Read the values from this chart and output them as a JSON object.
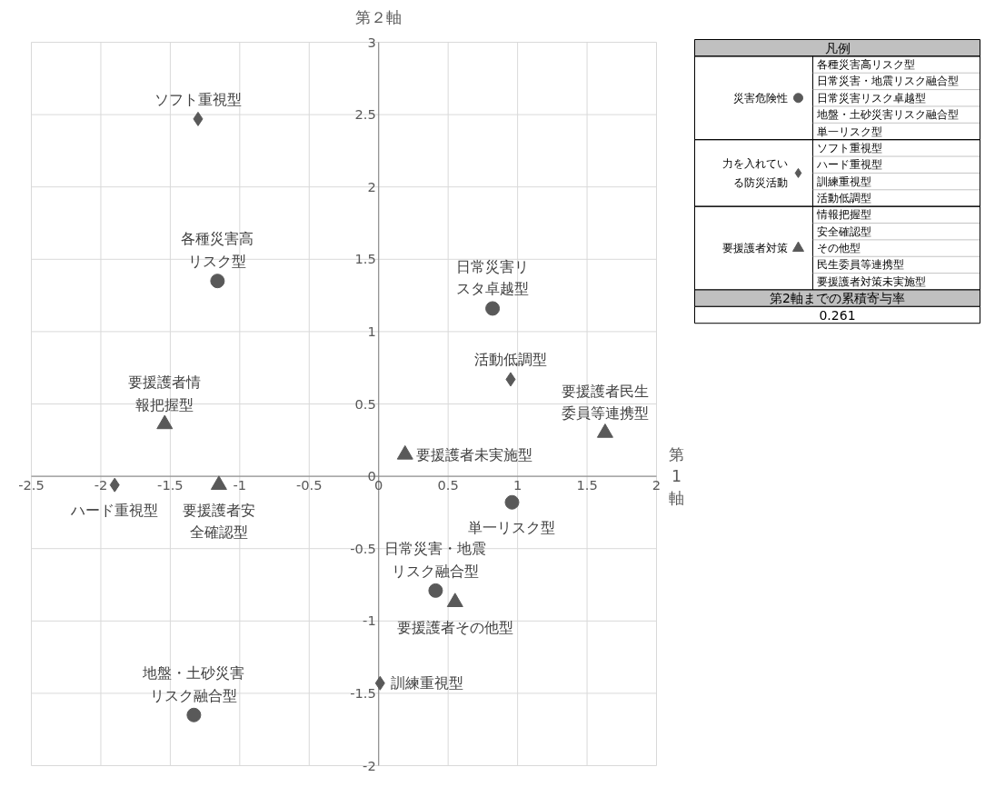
{
  "chart_data": {
    "type": "scatter",
    "xlabel": "第1軸",
    "ylabel": "第２軸",
    "legend_title": "凡例",
    "legend": "right",
    "grid": true,
    "xlim": [
      -2.5,
      2
    ],
    "xticks": [
      -2.5,
      -2,
      -1.5,
      -1,
      -0.5,
      0,
      0.5,
      1,
      1.5,
      2
    ],
    "ylim": [
      -2,
      3
    ],
    "yticks": [
      -2,
      -1.5,
      -1,
      -0.5,
      0,
      0.5,
      1,
      1.5,
      2,
      2.5,
      3
    ],
    "series": [
      {
        "name": "災害危険性",
        "marker": "circle",
        "color": "#595959",
        "x": [
          -1.16,
          0.41,
          0.82,
          -1.33,
          0.96
        ],
        "values": [
          1.35,
          -0.79,
          1.16,
          -1.65,
          -0.18
        ]
      },
      {
        "name": "力を入れている防災活動",
        "marker": "diamond",
        "color": "#595959",
        "x": [
          -1.3,
          -1.9,
          0.01,
          0.95
        ],
        "values": [
          2.47,
          -0.06,
          -1.43,
          0.67
        ]
      },
      {
        "name": "要援護者対策",
        "marker": "triangle",
        "color": "#595959",
        "x": [
          -1.54,
          -1.15,
          0.55,
          1.63,
          0.19
        ],
        "values": [
          0.36,
          -0.06,
          -0.87,
          0.3,
          0.15
        ]
      }
    ],
    "annotations": [
      {
        "text": "各種災害高リスク型",
        "x": -1.16,
        "y": 1.35
      },
      {
        "text": "日常災害・地震リスク融合型",
        "x": 0.41,
        "y": -0.79
      },
      {
        "text": "日常災害リスタ卓越型",
        "x": 0.82,
        "y": 1.16
      },
      {
        "text": "地盤・土砂災害リスク融合型",
        "x": -1.33,
        "y": -1.65
      },
      {
        "text": "単一リスク型",
        "x": 0.96,
        "y": -0.18
      },
      {
        "text": "ソフト重視型",
        "x": -1.3,
        "y": 2.47
      },
      {
        "text": "ハード重視型",
        "x": -1.9,
        "y": -0.06
      },
      {
        "text": "訓練重視型",
        "x": 0.01,
        "y": -1.43
      },
      {
        "text": "活動低調型",
        "x": 0.95,
        "y": 0.67
      },
      {
        "text": "要援護者情報把握型",
        "x": -1.54,
        "y": 0.36
      },
      {
        "text": "要援護者安全確認型",
        "x": -1.15,
        "y": -0.06
      },
      {
        "text": "要援護者その他型",
        "x": 0.55,
        "y": -0.87
      },
      {
        "text": "要援護者民生委員等連携型",
        "x": 1.63,
        "y": 0.3
      },
      {
        "text": "要援護者未実施型",
        "x": 0.19,
        "y": 0.15
      },
      "各種災害高リスク型",
      "日常災害・地震リスク融合型",
      "日常災害リスク卓越型",
      "地盤・土砂災害リスク融合型",
      "単一リスク型",
      "ソフト重視型",
      "ハード重視型",
      "訓練重視型",
      "活動低調型",
      "情報把握型",
      "安全確認型",
      "その他型",
      "民生委員等連携型",
      "要援護者対策未実施型",
      "第2軸までの累積寄与率",
      "0.261"
    ]
  }
}
